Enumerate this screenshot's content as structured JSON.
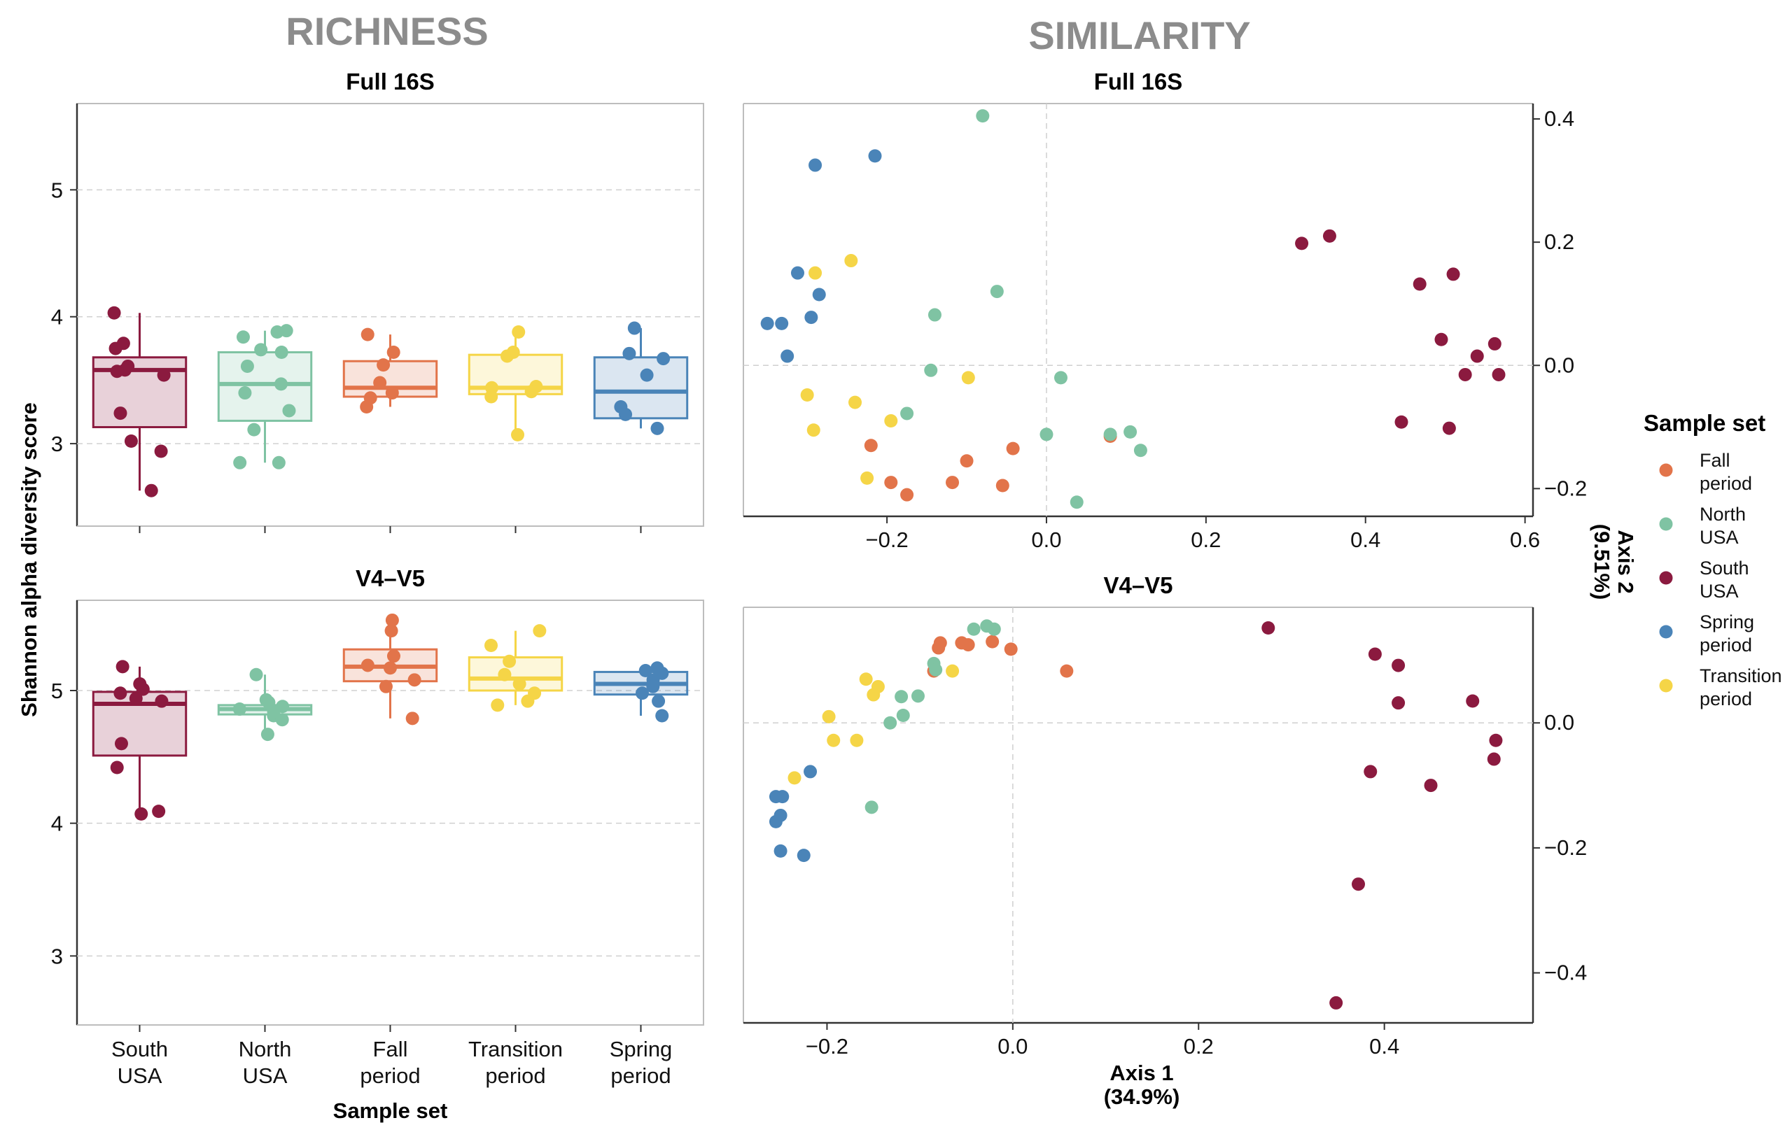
{
  "section_titles": {
    "left": "RICHNESS",
    "right": "SIMILARITY"
  },
  "colors": {
    "South USA": "#8b1a3f",
    "North USA": "#7fc3a3",
    "Fall period": "#e2744a",
    "Transition period": "#f5d547",
    "Spring period": "#4a84b8"
  },
  "legend": {
    "title": "Sample set",
    "items": [
      {
        "group": "Fall period",
        "label": [
          "Fall",
          "period"
        ]
      },
      {
        "group": "North USA",
        "label": [
          "North",
          "USA"
        ]
      },
      {
        "group": "South USA",
        "label": [
          "South",
          "USA"
        ]
      },
      {
        "group": "Spring period",
        "label": [
          "Spring",
          "period"
        ]
      },
      {
        "group": "Transition period",
        "label": [
          "Transition",
          "period"
        ]
      }
    ]
  },
  "chart_data": [
    {
      "id": "richness-full16s",
      "type": "box",
      "title": "Full 16S",
      "ylabel": "Shannon alpha diversity score",
      "ylim": [
        2.35,
        5.68
      ],
      "yticks": [
        3,
        4,
        5
      ],
      "categories": [
        {
          "group": "South USA",
          "label": [
            "South",
            "USA"
          ]
        },
        {
          "group": "North USA",
          "label": [
            "North",
            "USA"
          ]
        },
        {
          "group": "Fall period",
          "label": [
            "Fall",
            "period"
          ]
        },
        {
          "group": "Transition period",
          "label": [
            "Transition",
            "period"
          ]
        },
        {
          "group": "Spring period",
          "label": [
            "Spring",
            "period"
          ]
        }
      ],
      "boxes": [
        {
          "q1": 3.13,
          "median": 3.58,
          "q3": 3.68,
          "whisker_low": 2.63,
          "whisker_high": 4.03,
          "points": [
            4.03,
            3.79,
            3.75,
            3.61,
            3.58,
            3.57,
            3.54,
            3.24,
            3.02,
            2.94,
            2.63
          ]
        },
        {
          "q1": 3.18,
          "median": 3.47,
          "q3": 3.72,
          "whisker_low": 2.85,
          "whisker_high": 3.89,
          "points": [
            3.89,
            3.88,
            3.84,
            3.74,
            3.72,
            3.61,
            3.47,
            3.4,
            3.26,
            3.11,
            2.85,
            2.85
          ]
        },
        {
          "q1": 3.37,
          "median": 3.44,
          "q3": 3.65,
          "whisker_low": 3.29,
          "whisker_high": 3.86,
          "points": [
            3.86,
            3.72,
            3.62,
            3.48,
            3.4,
            3.36,
            3.29
          ]
        },
        {
          "q1": 3.39,
          "median": 3.44,
          "q3": 3.7,
          "whisker_low": 3.07,
          "whisker_high": 3.88,
          "points": [
            3.88,
            3.72,
            3.69,
            3.45,
            3.44,
            3.41,
            3.37,
            3.07
          ]
        },
        {
          "q1": 3.2,
          "median": 3.41,
          "q3": 3.68,
          "whisker_low": 3.12,
          "whisker_high": 3.91,
          "points": [
            3.91,
            3.71,
            3.67,
            3.54,
            3.29,
            3.23,
            3.12
          ]
        }
      ]
    },
    {
      "id": "richness-v4v5",
      "type": "box",
      "title": "V4–V5",
      "ylabel": "Shannon alpha diversity score",
      "xlabel": "Sample set",
      "ylim": [
        2.48,
        5.68
      ],
      "yticks": [
        3,
        4,
        5
      ],
      "categories": [
        {
          "group": "South USA",
          "label": [
            "South",
            "USA"
          ]
        },
        {
          "group": "North USA",
          "label": [
            "North",
            "USA"
          ]
        },
        {
          "group": "Fall period",
          "label": [
            "Fall",
            "period"
          ]
        },
        {
          "group": "Transition period",
          "label": [
            "Transition",
            "period"
          ]
        },
        {
          "group": "Spring period",
          "label": [
            "Spring",
            "period"
          ]
        }
      ],
      "boxes": [
        {
          "q1": 4.51,
          "median": 4.9,
          "q3": 4.99,
          "whisker_low": 4.07,
          "whisker_high": 5.18,
          "points": [
            5.18,
            5.05,
            5.01,
            4.98,
            4.94,
            4.92,
            4.6,
            4.42,
            4.09,
            4.07
          ]
        },
        {
          "q1": 4.82,
          "median": 4.86,
          "q3": 4.89,
          "whisker_low": 4.67,
          "whisker_high": 5.12,
          "points": [
            5.12,
            4.93,
            4.91,
            4.88,
            4.86,
            4.84,
            4.81,
            4.78,
            4.67
          ]
        },
        {
          "q1": 5.07,
          "median": 5.18,
          "q3": 5.31,
          "whisker_low": 4.79,
          "whisker_high": 5.53,
          "points": [
            5.53,
            5.45,
            5.26,
            5.19,
            5.17,
            5.08,
            5.03,
            4.79
          ]
        },
        {
          "q1": 5.0,
          "median": 5.09,
          "q3": 5.25,
          "whisker_low": 4.89,
          "whisker_high": 5.45,
          "points": [
            5.45,
            5.34,
            5.22,
            5.12,
            5.05,
            4.98,
            4.92,
            4.89
          ]
        },
        {
          "q1": 4.97,
          "median": 5.05,
          "q3": 5.14,
          "whisker_low": 4.81,
          "whisker_high": 5.17,
          "points": [
            5.17,
            5.15,
            5.13,
            5.08,
            5.03,
            4.98,
            4.92,
            4.81
          ]
        }
      ]
    },
    {
      "id": "similarity-full16s",
      "type": "scatter",
      "title": "Full 16S",
      "xlim": [
        -0.38,
        0.61
      ],
      "ylim": [
        -0.245,
        0.425
      ],
      "xticks": [
        -0.2,
        0.0,
        0.2,
        0.4,
        0.6
      ],
      "yticks": [
        -0.2,
        0.0,
        0.2,
        0.4
      ],
      "xtick_labels": [
        "−0.2",
        "0.0",
        "0.2",
        "0.4",
        "0.6"
      ],
      "ytick_labels": [
        "−0.2",
        "0.0",
        "0.2",
        "0.4"
      ],
      "y_axis_side": "right",
      "series": [
        {
          "group": "Fall period",
          "points": [
            [
              -0.22,
              -0.13
            ],
            [
              -0.195,
              -0.19
            ],
            [
              -0.175,
              -0.21
            ],
            [
              -0.118,
              -0.19
            ],
            [
              -0.1,
              -0.155
            ],
            [
              -0.055,
              -0.195
            ],
            [
              -0.042,
              -0.135
            ],
            [
              0.08,
              -0.115
            ]
          ]
        },
        {
          "group": "North USA",
          "points": [
            [
              -0.08,
              0.405
            ],
            [
              -0.062,
              0.12
            ],
            [
              -0.14,
              0.082
            ],
            [
              -0.145,
              -0.008
            ],
            [
              -0.175,
              -0.078
            ],
            [
              0.018,
              -0.02
            ],
            [
              0.0,
              -0.112
            ],
            [
              0.08,
              -0.112
            ],
            [
              0.105,
              -0.108
            ],
            [
              0.118,
              -0.138
            ],
            [
              0.038,
              -0.222
            ]
          ]
        },
        {
          "group": "South USA",
          "points": [
            [
              0.32,
              0.198
            ],
            [
              0.355,
              0.21
            ],
            [
              0.468,
              0.132
            ],
            [
              0.51,
              0.148
            ],
            [
              0.495,
              0.042
            ],
            [
              0.562,
              0.035
            ],
            [
              0.54,
              0.015
            ],
            [
              0.525,
              -0.015
            ],
            [
              0.567,
              -0.015
            ],
            [
              0.445,
              -0.092
            ],
            [
              0.505,
              -0.102
            ]
          ]
        },
        {
          "group": "Spring period",
          "points": [
            [
              -0.29,
              0.325
            ],
            [
              -0.215,
              0.34
            ],
            [
              -0.312,
              0.15
            ],
            [
              -0.285,
              0.115
            ],
            [
              -0.295,
              0.078
            ],
            [
              -0.332,
              0.068
            ],
            [
              -0.35,
              0.068
            ],
            [
              -0.325,
              0.015
            ]
          ]
        },
        {
          "group": "Transition period",
          "points": [
            [
              -0.245,
              0.17
            ],
            [
              -0.29,
              0.15
            ],
            [
              -0.098,
              -0.02
            ],
            [
              -0.3,
              -0.048
            ],
            [
              -0.24,
              -0.06
            ],
            [
              -0.195,
              -0.09
            ],
            [
              -0.292,
              -0.105
            ],
            [
              -0.225,
              -0.183
            ]
          ]
        }
      ]
    },
    {
      "id": "similarity-v4v5",
      "type": "scatter",
      "title": "V4–V5",
      "xlabel": [
        "Axis 1",
        "(34.9%)"
      ],
      "ylabel": [
        "Axis 2",
        "(9.51%)"
      ],
      "xlim": [
        -0.29,
        0.56
      ],
      "ylim": [
        -0.48,
        0.185
      ],
      "xticks": [
        -0.2,
        0.0,
        0.2,
        0.4
      ],
      "yticks": [
        -0.4,
        -0.2,
        0.0
      ],
      "xtick_labels": [
        "−0.2",
        "0.0",
        "0.2",
        "0.4"
      ],
      "ytick_labels": [
        "−0.4",
        "−0.2",
        "0.0"
      ],
      "y_axis_side": "right",
      "series": [
        {
          "group": "Fall period",
          "points": [
            [
              -0.078,
              0.128
            ],
            [
              -0.08,
              0.12
            ],
            [
              -0.055,
              0.128
            ],
            [
              -0.048,
              0.125
            ],
            [
              -0.022,
              0.13
            ],
            [
              -0.002,
              0.118
            ],
            [
              0.058,
              0.083
            ],
            [
              -0.085,
              0.083
            ]
          ]
        },
        {
          "group": "North USA",
          "points": [
            [
              -0.028,
              0.155
            ],
            [
              -0.042,
              0.15
            ],
            [
              -0.02,
              0.15
            ],
            [
              -0.085,
              0.095
            ],
            [
              -0.083,
              0.085
            ],
            [
              -0.12,
              0.042
            ],
            [
              -0.102,
              0.043
            ],
            [
              -0.118,
              0.012
            ],
            [
              -0.132,
              0.0
            ],
            [
              -0.152,
              -0.135
            ]
          ]
        },
        {
          "group": "South USA",
          "points": [
            [
              0.275,
              0.152
            ],
            [
              0.39,
              0.11
            ],
            [
              0.415,
              0.092
            ],
            [
              0.415,
              0.032
            ],
            [
              0.495,
              0.035
            ],
            [
              0.52,
              -0.028
            ],
            [
              0.518,
              -0.058
            ],
            [
              0.385,
              -0.078
            ],
            [
              0.45,
              -0.1
            ],
            [
              0.372,
              -0.258
            ],
            [
              0.348,
              -0.448
            ]
          ]
        },
        {
          "group": "Spring period",
          "points": [
            [
              -0.218,
              -0.078
            ],
            [
              -0.255,
              -0.118
            ],
            [
              -0.248,
              -0.118
            ],
            [
              -0.25,
              -0.148
            ],
            [
              -0.255,
              -0.158
            ],
            [
              -0.25,
              -0.205
            ],
            [
              -0.225,
              -0.212
            ]
          ]
        },
        {
          "group": "Transition period",
          "points": [
            [
              -0.158,
              0.07
            ],
            [
              -0.065,
              0.083
            ],
            [
              -0.145,
              0.058
            ],
            [
              -0.15,
              0.045
            ],
            [
              -0.198,
              0.01
            ],
            [
              -0.193,
              -0.028
            ],
            [
              -0.168,
              -0.028
            ],
            [
              -0.235,
              -0.088
            ]
          ]
        }
      ]
    }
  ]
}
